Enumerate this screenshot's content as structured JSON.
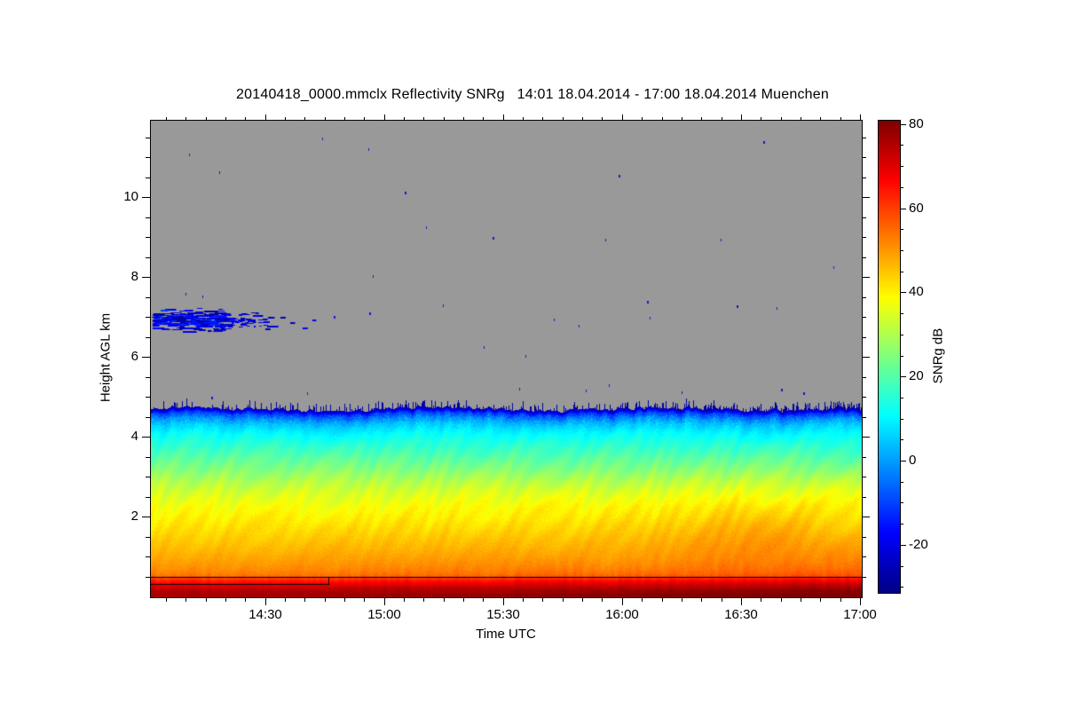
{
  "page": {
    "bg": "#ffffff",
    "fg": "#000000"
  },
  "title": "20140418_0000.mmclx Reflectivity SNRg   14:01 18.04.2014 - 17:00 18.04.2014 Muenchen",
  "axes": {
    "x": {
      "label": "Time UTC",
      "start": "14:01",
      "end": "17:00",
      "duration_min": 179,
      "major_ticks": [
        {
          "label": "14:30",
          "t": 0.162011
        },
        {
          "label": "15:00",
          "t": 0.329609
        },
        {
          "label": "15:30",
          "t": 0.497207
        },
        {
          "label": "16:00",
          "t": 0.664804
        },
        {
          "label": "16:30",
          "t": 0.832402
        },
        {
          "label": "17:00",
          "t": 1.0
        }
      ],
      "minor_step_min": 5,
      "first_minor_offset_min": 4
    },
    "y": {
      "label": "Height AGL km",
      "min_km": 0,
      "max_km": 11.93,
      "major_ticks": [
        {
          "label": "2",
          "km": 2
        },
        {
          "label": "4",
          "km": 4
        },
        {
          "label": "6",
          "km": 6
        },
        {
          "label": "8",
          "km": 8
        },
        {
          "label": "10",
          "km": 10
        }
      ],
      "minor_step_km": 0.5
    }
  },
  "colorbar": {
    "label": "SNRg dB",
    "min": -31,
    "max": 81,
    "major_ticks": [
      {
        "label": "80",
        "v": 80
      },
      {
        "label": "60",
        "v": 60
      },
      {
        "label": "40",
        "v": 40
      },
      {
        "label": "20",
        "v": 20
      },
      {
        "label": "0",
        "v": 0
      },
      {
        "label": "-20",
        "v": -20
      }
    ],
    "minor_step": 5,
    "stops": [
      [
        -31,
        "#000085"
      ],
      [
        -17,
        "#0000FF"
      ],
      [
        11,
        "#00FFFF"
      ],
      [
        39,
        "#FFFF00"
      ],
      [
        67,
        "#FF0000"
      ],
      [
        81,
        "#7F0000"
      ]
    ]
  },
  "chart_data": {
    "type": "heatmap",
    "title": "20140418_0000.mmclx Reflectivity SNRg   14:01 18.04.2014 - 17:00 18.04.2014 Muenchen",
    "xlabel": "Time UTC",
    "ylabel": "Height AGL km",
    "value_label": "SNRg dB",
    "time_utc_range": [
      "14:01 18.04.2014",
      "17:00 18.04.2014"
    ],
    "height_agl_km_range": [
      0,
      11.93
    ],
    "value_range_db": [
      -31,
      81
    ],
    "no_signal_color": "#999999",
    "vertical_profile_km_db": [
      [
        0.0,
        77
      ],
      [
        0.1,
        76.5
      ],
      [
        0.15,
        75.5
      ],
      [
        0.24,
        73
      ],
      [
        0.3,
        70
      ],
      [
        0.36,
        67
      ],
      [
        0.44,
        63
      ],
      [
        0.5,
        58
      ],
      [
        0.56,
        54
      ],
      [
        0.66,
        52
      ],
      [
        0.85,
        50
      ],
      [
        1.1,
        47.5
      ],
      [
        1.4,
        45
      ],
      [
        1.7,
        42.5
      ],
      [
        2.0,
        40
      ],
      [
        2.3,
        38
      ],
      [
        2.6,
        35
      ],
      [
        2.9,
        31
      ],
      [
        3.2,
        26
      ],
      [
        3.5,
        21
      ],
      [
        3.8,
        16
      ],
      [
        4.1,
        11
      ],
      [
        4.3,
        6
      ],
      [
        4.45,
        0
      ],
      [
        4.6,
        -10
      ],
      [
        4.72,
        -27
      ]
    ],
    "cloud_top_km": 4.72,
    "cloud_top_jitter_km": 0.11,
    "right_side_enhancement_db": 5.5,
    "orange_blob": {
      "t": 0.84,
      "h_km": 1.9,
      "amp_db": 3.5
    },
    "upper_cloud_patch": {
      "t_range": [
        0.0,
        0.165
      ],
      "h_km_range": [
        6.6,
        7.28
      ],
      "value_db_range": [
        -29,
        -8
      ]
    },
    "trailing_dashes": [
      [
        0.172,
        6.8
      ],
      [
        0.183,
        7.03
      ],
      [
        0.196,
        6.88
      ],
      [
        0.214,
        6.75
      ],
      [
        0.228,
        6.95
      ]
    ],
    "noise_specks": [
      [
        0.054,
        11.11
      ],
      [
        0.241,
        11.51
      ],
      [
        0.306,
        11.24
      ],
      [
        0.863,
        11.42
      ],
      [
        0.096,
        10.67
      ],
      [
        0.659,
        10.58
      ],
      [
        0.358,
        10.16
      ],
      [
        0.961,
        8.29
      ],
      [
        0.481,
        9.02
      ],
      [
        0.64,
        8.98
      ],
      [
        0.803,
        8.98
      ],
      [
        0.313,
        8.07
      ],
      [
        0.388,
        9.29
      ],
      [
        0.049,
        7.62
      ],
      [
        0.072,
        7.56
      ],
      [
        0.257,
        7.04
      ],
      [
        0.308,
        7.13
      ],
      [
        0.411,
        7.33
      ],
      [
        0.469,
        6.29
      ],
      [
        0.528,
        6.07
      ],
      [
        0.567,
        6.98
      ],
      [
        0.602,
        6.82
      ],
      [
        0.703,
        7.02
      ],
      [
        0.699,
        7.42
      ],
      [
        0.825,
        7.31
      ],
      [
        0.881,
        7.27
      ],
      [
        0.919,
        5.13
      ],
      [
        0.22,
        5.13
      ],
      [
        0.085,
        5.02
      ],
      [
        0.519,
        5.24
      ],
      [
        0.613,
        5.2
      ],
      [
        0.748,
        5.16
      ],
      [
        0.888,
        5.22
      ],
      [
        0.645,
        5.33
      ]
    ],
    "annotations": {
      "line_full_h_km": 0.51,
      "line_partial_h_km": 0.33,
      "line_partial_t_end": 0.2497,
      "color": "#000000"
    },
    "speck_color": "#1818CE",
    "seed": 20140418
  }
}
